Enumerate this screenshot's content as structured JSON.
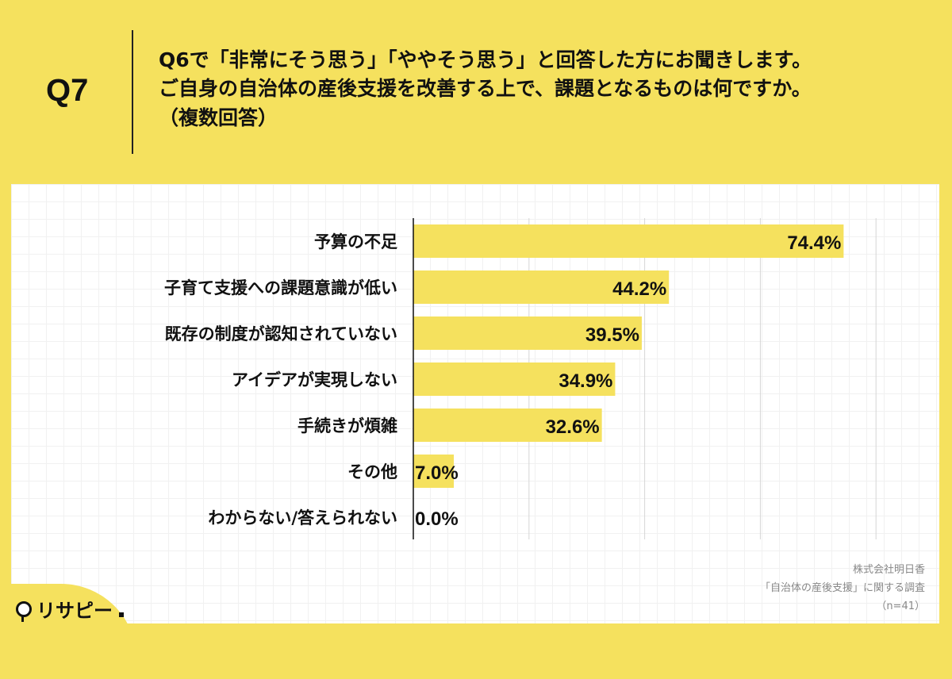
{
  "header": {
    "q_label": "Q7",
    "lines": [
      "Q6で「非常にそう思う」「ややそう思う」と回答した方にお聞きします。",
      "ご自身の自治体の産後支援を改善する上で、課題となるものは何ですか。",
      "（複数回答）"
    ]
  },
  "source": {
    "company": "株式会社明日香",
    "survey": "「自治体の産後支援」に関する調査",
    "sample": "（n=41）"
  },
  "logo": {
    "text": "リサピー"
  },
  "colors": {
    "background": "#F5E15E",
    "bar": "#F5E15E",
    "panel": "#FFFFFF"
  },
  "chart_data": {
    "type": "bar",
    "orientation": "horizontal",
    "categories": [
      "予算の不足",
      "子育て支援への課題意識が低い",
      "既存の制度が認知されていない",
      "アイデアが実現しない",
      "手続きが煩雑",
      "その他",
      "わからない/答えられない"
    ],
    "values": [
      74.4,
      44.2,
      39.5,
      34.9,
      32.6,
      7.0,
      0.0
    ],
    "value_labels": [
      "74.4%",
      "44.2%",
      "39.5%",
      "34.9%",
      "32.6%",
      "7.0%",
      "0.0%"
    ],
    "xlim": [
      0,
      80
    ],
    "grid": true,
    "legend": false
  }
}
